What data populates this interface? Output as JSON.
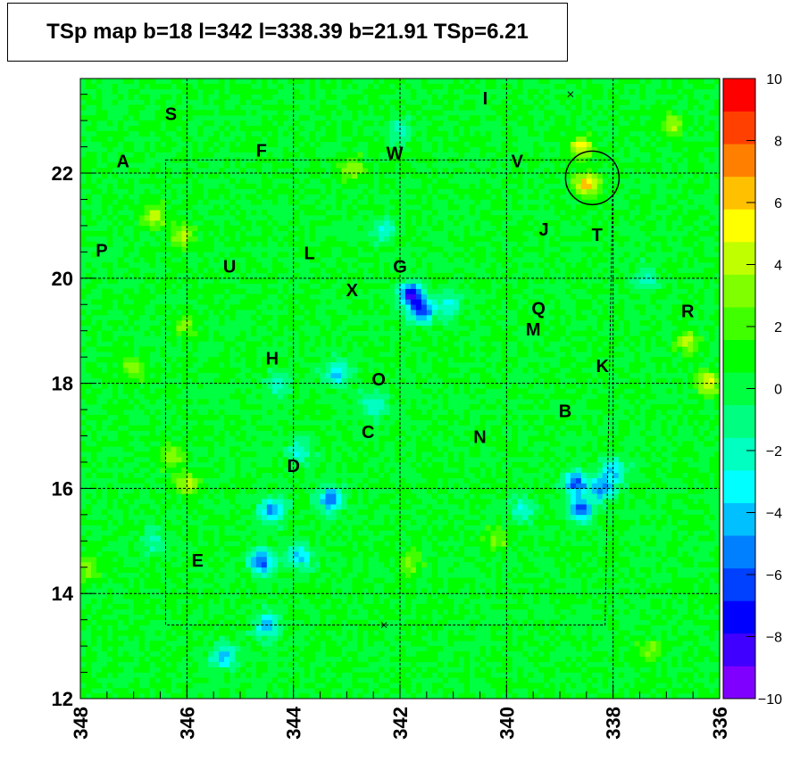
{
  "title": "TSp map b=18 l=342 l=338.39 b=21.91 TSp=6.21",
  "chart_data": {
    "type": "heatmap",
    "title": "TSp map b=18 l=342 l=338.39 b=21.91 TSp=6.21",
    "xlabel": "",
    "ylabel": "",
    "xlim": [
      348,
      336
    ],
    "ylim": [
      12,
      23.8
    ],
    "x_ticks": [
      "348",
      "346",
      "344",
      "342",
      "340",
      "338",
      "336"
    ],
    "y_ticks": [
      "12",
      "14",
      "16",
      "18",
      "20",
      "22"
    ],
    "colorbar": {
      "range": [
        -10,
        10
      ],
      "ticks": [
        "10",
        "8",
        "6",
        "4",
        "2",
        "0",
        "−2",
        "−4",
        "−6",
        "−8",
        "−10"
      ],
      "colors": [
        "#8000ff",
        "#4000ff",
        "#0000ff",
        "#0040ff",
        "#0080ff",
        "#00c0ff",
        "#00ffff",
        "#00ffc0",
        "#00ff80",
        "#00ff40",
        "#00ff00",
        "#40ff00",
        "#80ff00",
        "#c0ff00",
        "#ffff00",
        "#ffc000",
        "#ff8000",
        "#ff4000",
        "#ff0000"
      ]
    },
    "circle_marker": {
      "l": 338.39,
      "b": 21.91
    },
    "cross_markers": [
      {
        "l": 338.8,
        "b": 23.5
      },
      {
        "l": 342.3,
        "b": 13.4
      }
    ],
    "sources": [
      {
        "label": "S",
        "l": 346.3,
        "b": 23.1
      },
      {
        "label": "A",
        "l": 347.2,
        "b": 22.2
      },
      {
        "label": "F",
        "l": 344.6,
        "b": 22.4
      },
      {
        "label": "W",
        "l": 342.1,
        "b": 22.35
      },
      {
        "label": "V",
        "l": 339.8,
        "b": 22.2
      },
      {
        "label": "I",
        "l": 340.4,
        "b": 23.4
      },
      {
        "label": "J",
        "l": 339.3,
        "b": 20.9
      },
      {
        "label": "T",
        "l": 338.3,
        "b": 20.8
      },
      {
        "label": "P",
        "l": 347.6,
        "b": 20.5
      },
      {
        "label": "U",
        "l": 345.2,
        "b": 20.2
      },
      {
        "label": "L",
        "l": 343.7,
        "b": 20.45
      },
      {
        "label": "G",
        "l": 342.0,
        "b": 20.2
      },
      {
        "label": "X",
        "l": 342.9,
        "b": 19.75
      },
      {
        "label": "Q",
        "l": 339.4,
        "b": 19.4
      },
      {
        "label": "M",
        "l": 339.5,
        "b": 19.0
      },
      {
        "label": "R",
        "l": 336.6,
        "b": 19.35
      },
      {
        "label": "H",
        "l": 344.4,
        "b": 18.45
      },
      {
        "label": "O",
        "l": 342.4,
        "b": 18.05
      },
      {
        "label": "K",
        "l": 338.2,
        "b": 18.3
      },
      {
        "label": "B",
        "l": 338.9,
        "b": 17.45
      },
      {
        "label": "C",
        "l": 342.6,
        "b": 17.05
      },
      {
        "label": "N",
        "l": 340.5,
        "b": 16.95
      },
      {
        "label": "D",
        "l": 344.0,
        "b": 16.4
      },
      {
        "label": "E",
        "l": 345.8,
        "b": 14.6
      }
    ],
    "hotspots": [
      {
        "l": 338.5,
        "b": 21.8,
        "v": 6.2
      },
      {
        "l": 338.6,
        "b": 22.5,
        "v": 4.5
      },
      {
        "l": 346.6,
        "b": 21.2,
        "v": 4.0
      },
      {
        "l": 346.1,
        "b": 20.8,
        "v": 3.5
      },
      {
        "l": 342.9,
        "b": 22.1,
        "v": 3.5
      },
      {
        "l": 336.2,
        "b": 18.0,
        "v": 4.5
      },
      {
        "l": 336.6,
        "b": 18.8,
        "v": 3.2
      },
      {
        "l": 347.0,
        "b": 18.3,
        "v": 3.0
      },
      {
        "l": 346.0,
        "b": 16.1,
        "v": 4.0
      },
      {
        "l": 346.3,
        "b": 16.6,
        "v": 3.2
      },
      {
        "l": 347.9,
        "b": 14.5,
        "v": 3.0
      },
      {
        "l": 341.8,
        "b": 14.6,
        "v": 3.0
      },
      {
        "l": 337.3,
        "b": 12.9,
        "v": 2.8
      },
      {
        "l": 336.9,
        "b": 22.9,
        "v": 2.8
      },
      {
        "l": 340.2,
        "b": 15.0,
        "v": 2.6
      },
      {
        "l": 346.0,
        "b": 19.1,
        "v": 2.5
      },
      {
        "l": 341.6,
        "b": 19.4,
        "v": -7.5
      },
      {
        "l": 341.8,
        "b": 19.7,
        "v": -8.0
      },
      {
        "l": 338.7,
        "b": 16.1,
        "v": -7.0
      },
      {
        "l": 338.6,
        "b": 15.6,
        "v": -7.0
      },
      {
        "l": 338.2,
        "b": 16.0,
        "v": -5.5
      },
      {
        "l": 338.0,
        "b": 16.35,
        "v": -4.5
      },
      {
        "l": 344.6,
        "b": 14.6,
        "v": -7.0
      },
      {
        "l": 344.4,
        "b": 15.6,
        "v": -6.0
      },
      {
        "l": 343.3,
        "b": 15.8,
        "v": -6.5
      },
      {
        "l": 343.9,
        "b": 14.7,
        "v": -4.5
      },
      {
        "l": 343.2,
        "b": 18.2,
        "v": -4.5
      },
      {
        "l": 342.5,
        "b": 17.6,
        "v": -3.5
      },
      {
        "l": 341.1,
        "b": 19.5,
        "v": -3.5
      },
      {
        "l": 342.3,
        "b": 20.9,
        "v": -3.0
      },
      {
        "l": 344.3,
        "b": 18.0,
        "v": -3.0
      },
      {
        "l": 344.5,
        "b": 13.4,
        "v": -4.5
      },
      {
        "l": 345.3,
        "b": 12.8,
        "v": -5.0
      },
      {
        "l": 343.9,
        "b": 16.7,
        "v": -2.8
      },
      {
        "l": 339.7,
        "b": 15.6,
        "v": -3.0
      },
      {
        "l": 342.0,
        "b": 22.8,
        "v": -2.5
      },
      {
        "l": 337.4,
        "b": 20.0,
        "v": -2.5
      },
      {
        "l": 346.6,
        "b": 15.0,
        "v": -2.5
      }
    ]
  }
}
